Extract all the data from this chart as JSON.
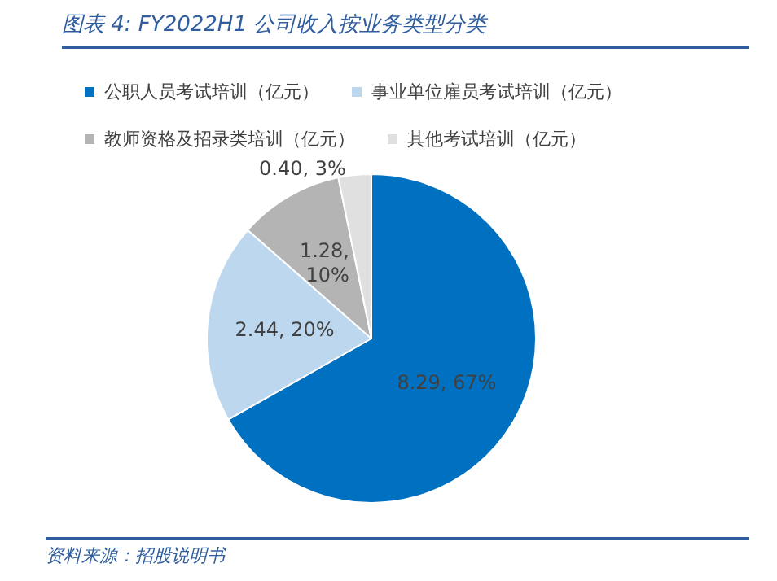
{
  "chart_data": {
    "type": "pie",
    "title": "图表 4:  FY2022H1 公司收入按业务类型分类",
    "categories": [
      "公职人员考试培训（亿元）",
      "事业单位雇员考试培训（亿元）",
      "教师资格及招录类培训（亿元）",
      "其他考试培训（亿元）"
    ],
    "values": [
      8.29,
      2.44,
      1.28,
      0.4
    ],
    "colors": [
      "#0070c0",
      "#bdd7ee",
      "#b4b4b4",
      "#e0e0e0"
    ],
    "value_labels": [
      "8.29, 67%",
      "2.44, 20%",
      "1.28, 10%",
      "0.40, 3%"
    ],
    "legend": "top",
    "annotations": [
      "资料来源：招股说明书"
    ]
  }
}
